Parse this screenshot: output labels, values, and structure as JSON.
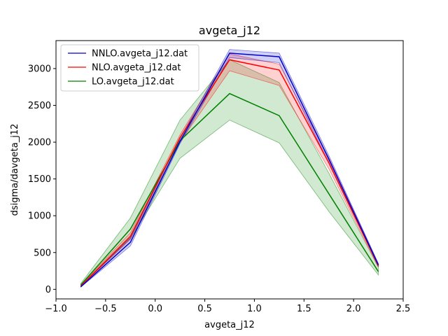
{
  "chart_data": {
    "type": "line",
    "title": "avgeta_j12",
    "xlabel": "avgeta_j12",
    "ylabel": "dsigma/davgeta_j12",
    "xlim": [
      -1.0,
      2.5
    ],
    "ylim": [
      -130,
      3380
    ],
    "x_ticks": [
      -1.0,
      -0.5,
      0.0,
      0.5,
      1.0,
      1.5,
      2.0,
      2.5
    ],
    "x_tick_labels": [
      "−1.0",
      "−0.5",
      "0.0",
      "0.5",
      "1.0",
      "1.5",
      "2.0",
      "2.5"
    ],
    "y_ticks": [
      0,
      500,
      1000,
      1500,
      2000,
      2500,
      3000
    ],
    "y_tick_labels": [
      "0",
      "500",
      "1000",
      "1500",
      "2000",
      "2500",
      "3000"
    ],
    "grid": false,
    "legend_position": "top-left",
    "x": [
      -0.75,
      -0.25,
      0.25,
      0.75,
      1.25,
      1.75,
      2.25
    ],
    "series": [
      {
        "name": "LO.avgeta_j12.dat",
        "color": "#008000",
        "values": [
          60,
          820,
          2020,
          2660,
          2360,
          1300,
          240
        ],
        "band_lower": [
          45,
          690,
          1780,
          2300,
          1990,
          1060,
          195
        ],
        "band_upper": [
          80,
          970,
          2300,
          3120,
          2810,
          1580,
          300
        ]
      },
      {
        "name": "NLO.avgeta_j12.dat",
        "color": "#ff0000",
        "values": [
          45,
          720,
          2060,
          3120,
          2980,
          1720,
          320
        ],
        "band_lower": [
          40,
          680,
          2000,
          2970,
          2770,
          1640,
          300
        ],
        "band_upper": [
          55,
          770,
          2100,
          3200,
          3060,
          1790,
          345
        ]
      },
      {
        "name": "NNLO.avgeta_j12.dat",
        "color": "#0000cc",
        "values": [
          35,
          640,
          2010,
          3210,
          3160,
          1770,
          330
        ],
        "band_lower": [
          30,
          590,
          1980,
          3150,
          3080,
          1720,
          310
        ],
        "band_upper": [
          45,
          700,
          2050,
          3260,
          3210,
          1820,
          350
        ]
      }
    ]
  }
}
